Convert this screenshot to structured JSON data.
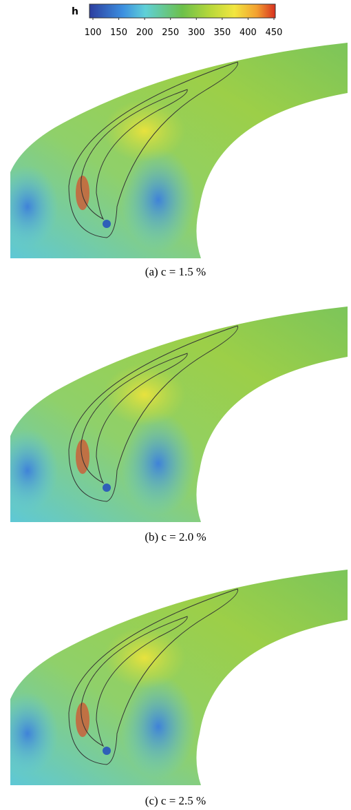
{
  "colorbar": {
    "label": "h",
    "lim": [
      100,
      450
    ],
    "ticks": [
      100,
      150,
      200,
      250,
      300,
      350,
      400,
      450
    ]
  },
  "panels": [
    {
      "caption": "(a)  c  =  1.5  %"
    },
    {
      "caption": "(b)  c  =  2.0  %"
    },
    {
      "caption": "(c)  c  =  2.5  %"
    }
  ]
}
